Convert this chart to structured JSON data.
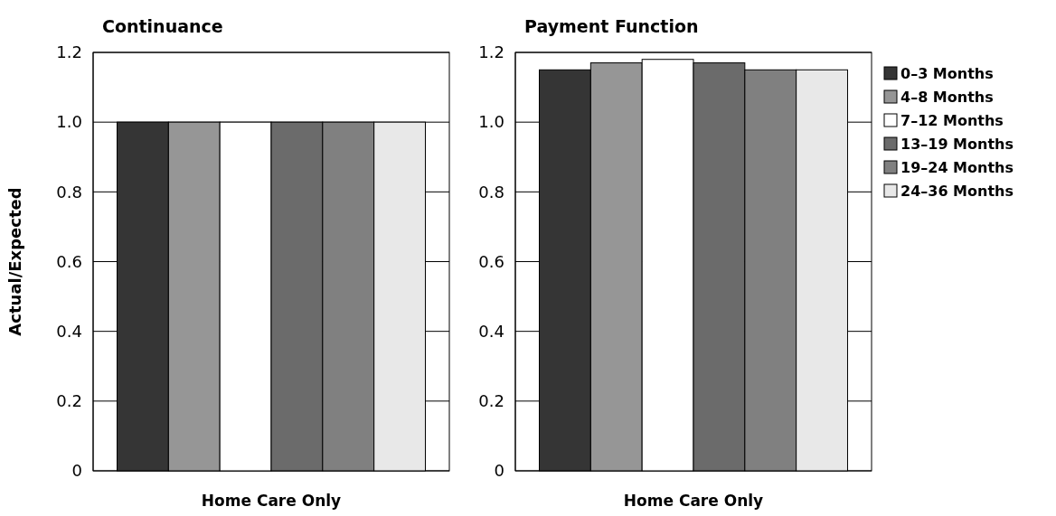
{
  "chart_data": [
    {
      "type": "bar",
      "title": "Continuance",
      "ylabel": "Actual/Expected",
      "xlabel": "Home Care Only",
      "categories": [
        null
      ],
      "ylim": [
        0,
        1.2
      ],
      "yticks": [
        0,
        0.2,
        0.4,
        0.6,
        0.8,
        {
          "value": 1,
          "label": "1.0"
        },
        1.2
      ],
      "grid": "y",
      "series": [
        {
          "color": "#353535",
          "values": [
            1.0
          ]
        },
        {
          "color": "#969696",
          "values": [
            1.0
          ]
        },
        {
          "color": "#ffffff",
          "values": [
            1.0
          ]
        },
        {
          "color": "#6b6b6b",
          "values": [
            1.0
          ]
        },
        {
          "color": "#808080",
          "values": [
            1.0
          ]
        },
        {
          "color": "#e8e8e8",
          "values": [
            1.0
          ]
        }
      ]
    },
    {
      "type": "bar",
      "title": "Payment Function",
      "xlabel": "Home Care Only",
      "categories": [
        null
      ],
      "ylim": [
        0,
        1.2
      ],
      "yticks": [
        0,
        0.2,
        0.4,
        0.6,
        0.8,
        {
          "value": 1,
          "label": "1.0"
        },
        1.2
      ],
      "grid": "y",
      "legend": "right",
      "series": [
        {
          "name": "0–3 Months",
          "color": "#353535",
          "values": [
            1.15
          ]
        },
        {
          "name": "4–8 Months",
          "color": "#969696",
          "values": [
            1.17
          ]
        },
        {
          "name": "7–12 Months",
          "color": "#ffffff",
          "values": [
            1.18
          ]
        },
        {
          "name": "13–19 Months",
          "color": "#6b6b6b",
          "values": [
            1.17
          ]
        },
        {
          "name": "19–24 Months",
          "color": "#808080",
          "values": [
            1.15
          ]
        },
        {
          "name": "24–36 Months",
          "color": "#e8e8e8",
          "values": [
            1.15
          ]
        }
      ]
    }
  ]
}
